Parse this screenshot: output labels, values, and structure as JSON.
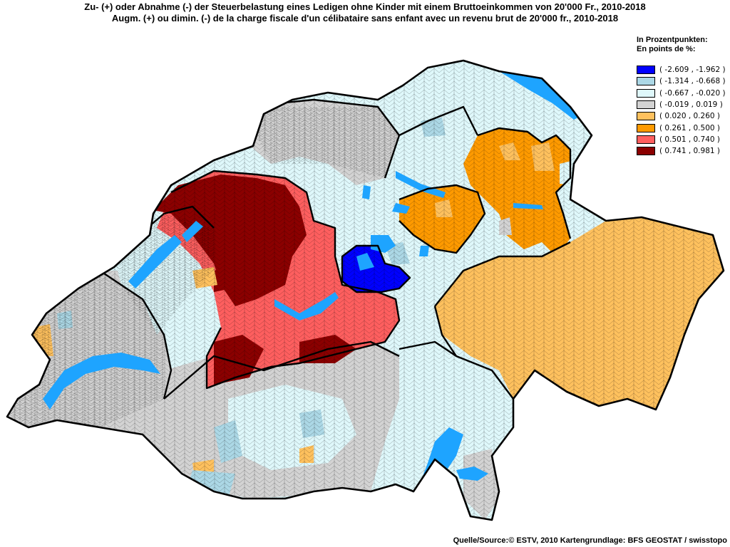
{
  "title_de": "Zu- (+) oder Abnahme (-) der Steuerbelastung eines Ledigen ohne Kinder mit einem Bruttoeinkommen von 20'000 Fr., 2010-2018",
  "title_fr": "Augm. (+) ou dimin. (-) de la charge fiscale d'un célibataire sans enfant avec un revenu brut de 20'000 fr., 2010-2018",
  "legend": {
    "title_de": "In Prozentpunkten:",
    "title_fr": "En points de %:",
    "classes": [
      {
        "label": "( -2.609 , -1.962 )",
        "color": "#0000ff"
      },
      {
        "label": "( -1.314 , -0.668 )",
        "color": "#acd8e6"
      },
      {
        "label": "( -0.667 , -0.020 )",
        "color": "#dff8fb"
      },
      {
        "label": "( -0.019 , 0.019 )",
        "color": "#d3d3d3"
      },
      {
        "label": "( 0.020 , 0.260 )",
        "color": "#ffc15e"
      },
      {
        "label": "( 0.261 , 0.500 )",
        "color": "#ff9a00"
      },
      {
        "label": "( 0.501 , 0.740 )",
        "color": "#ff5f5f"
      },
      {
        "label": "( 0.741 , 0.981 )",
        "color": "#8b0000"
      }
    ]
  },
  "lake_color": "#1ea4ff",
  "source": "Quelle/Source:© ESTV, 2010 Kartengrundlage: BFS GEOSTAT / swisstopo"
}
